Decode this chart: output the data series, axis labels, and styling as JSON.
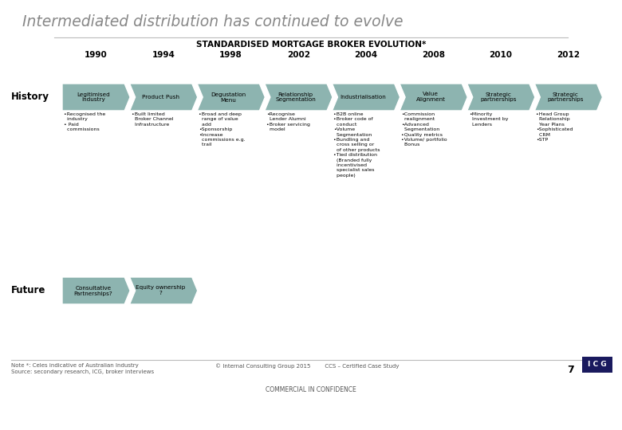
{
  "title": "Intermediated distribution has continued to evolve",
  "subtitle": "STANDARDISED MORTGAGE BROKER EVOLUTION*",
  "years": [
    "1990",
    "1994",
    "1998",
    "2002",
    "2004",
    "2008",
    "2010",
    "2012"
  ],
  "history_labels": [
    "Legitimised\nIndustry",
    "Product Push",
    "Degustation\nMenu",
    "Relationship\nSegmentation",
    "Industrialisation",
    "Value\nAlignment",
    "Strategic\npartnerships",
    "Strategic\npartnerships"
  ],
  "history_bullets": [
    "•Recognised the\n  industry\n• Paid\n  commissions",
    "•Built limited\n  Broker Channel\n  Infrastructure",
    "•Broad and deep\n  range of value\n  add\n•Sponsorship\n•Increase\n  commissions e.g.\n  trail",
    "•Recognise\n  Lender Alumni\n•Broker servicing\n  model",
    "•B2B online\n•Broker code of\n  conduct\n•Volume\n  Segmentation\n•Bundling and\n  cross selling or\n  of other products\n•Tied distribution\n  (Branded fully\n  incentivised\n  specialist sales\n  people)",
    "•Commission\n  realignment\n•Advanced\n  Segmentation\n•Quality metrics\n•Volume/ portfolio\n  Bonus",
    "•Minority\n  Investment by\n  Lenders",
    "•Head Group\n  Relationship\n  Year Plans\n•Sophisticated\n  CRM\n•STP"
  ],
  "future_labels": [
    "Consultative\nPartnerships?",
    "Equity ownership\n?"
  ],
  "arrow_color": "#8db4b0",
  "bg_color": "#ffffff",
  "title_color": "#888888",
  "subtitle_color": "#000000",
  "footer_left": "Note *: Celes indicative of Australian Industry\nSource: secondary research, ICG, broker interviews",
  "footer_bottom": "COMMERCIAL IN CONFIDENCE",
  "icg_bg": "#1a1a5e"
}
